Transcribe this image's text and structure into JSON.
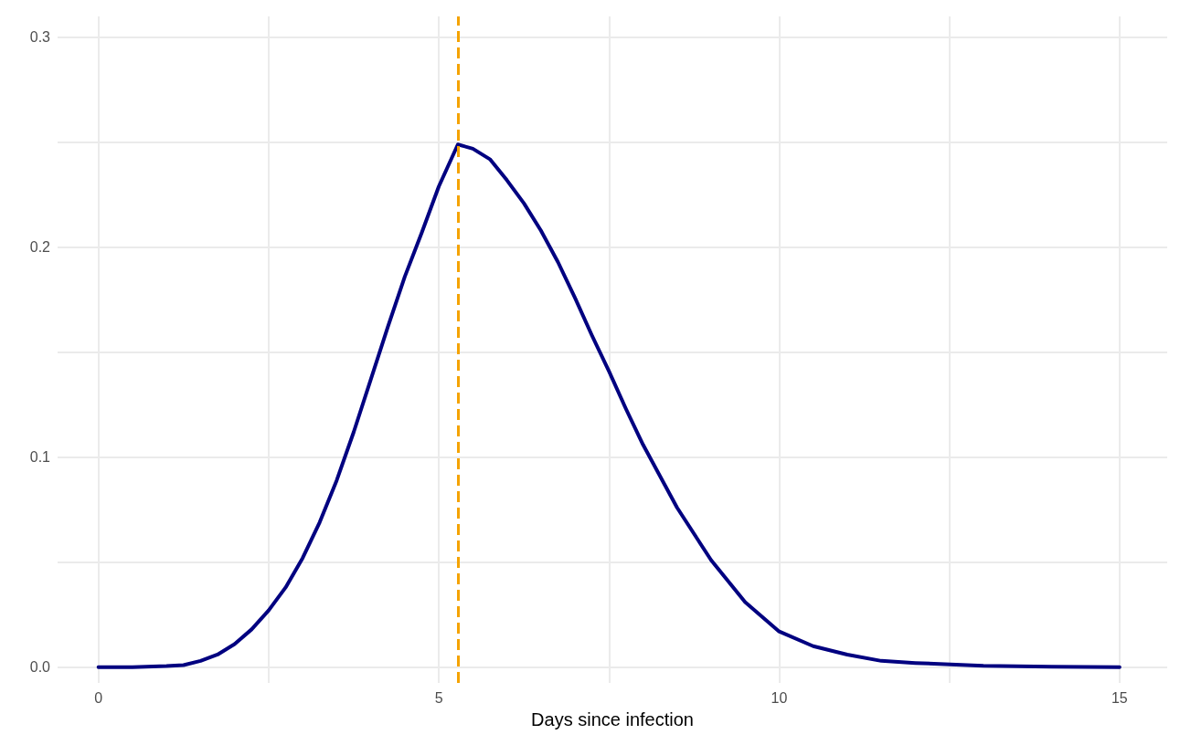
{
  "chart_data": {
    "type": "line",
    "xlabel": "Days since infection",
    "x": [
      0,
      0.5,
      1,
      1.25,
      1.5,
      1.75,
      2,
      2.25,
      2.5,
      2.75,
      3,
      3.25,
      3.5,
      3.75,
      4,
      4.25,
      4.5,
      4.75,
      5,
      5.28,
      5.5,
      5.75,
      6,
      6.25,
      6.5,
      6.75,
      7,
      7.25,
      7.5,
      7.75,
      8,
      8.5,
      9,
      9.5,
      10,
      10.5,
      11,
      11.5,
      12,
      13,
      14,
      15
    ],
    "series": [
      {
        "color": "#000080",
        "values": [
          0,
          0,
          0.0005,
          0.001,
          0.003,
          0.006,
          0.011,
          0.018,
          0.027,
          0.038,
          0.052,
          0.069,
          0.089,
          0.112,
          0.137,
          0.162,
          0.186,
          0.207,
          0.229,
          0.249,
          0.247,
          0.242,
          0.232,
          0.221,
          0.208,
          0.193,
          0.176,
          0.158,
          0.141,
          0.123,
          0.106,
          0.076,
          0.051,
          0.031,
          0.017,
          0.01,
          0.006,
          0.003,
          0.002,
          0.0007,
          0.0002,
          0
        ]
      }
    ],
    "xlim": [
      -0.6,
      15.7
    ],
    "ylim": [
      -0.0075,
      0.31
    ],
    "xticks": [
      0,
      {
        "value": 2.5,
        "label": null
      },
      5,
      {
        "value": 7.5,
        "label": null
      },
      10,
      {
        "value": 12.5,
        "label": null
      },
      15
    ],
    "yticks": [
      {
        "value": 0,
        "label": "0.0"
      },
      {
        "value": 0.05,
        "label": null
      },
      {
        "value": 0.1,
        "label": "0.1"
      },
      {
        "value": 0.15,
        "label": null
      },
      {
        "value": 0.2,
        "label": "0.2"
      },
      {
        "value": 0.25,
        "label": null
      },
      {
        "value": 0.3,
        "label": "0.3"
      }
    ],
    "ref_lines": [
      {
        "axis": "x",
        "value": 5.28,
        "color": "#f5a300",
        "line_style": "dashed"
      }
    ],
    "grid": true,
    "marker": "none",
    "line_style": "solid"
  }
}
